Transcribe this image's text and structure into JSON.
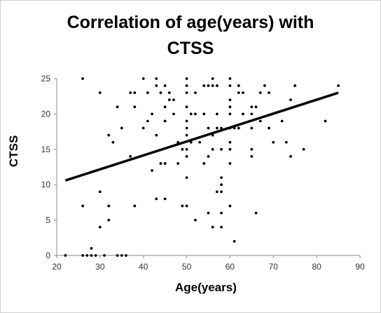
{
  "chart_data": {
    "type": "scatter",
    "title_line1": "Correlation of age(years) with",
    "title_line2": "CTSS",
    "xlabel": "Age(years)",
    "ylabel": "CTSS",
    "xlim": [
      20,
      90
    ],
    "ylim": [
      0,
      25
    ],
    "xticks": [
      "20",
      "30",
      "40",
      "50",
      "60",
      "70",
      "80",
      "90"
    ],
    "yticks": [
      "0",
      "5",
      "10",
      "15",
      "20",
      "25"
    ],
    "trendline": {
      "x": [
        22,
        85
      ],
      "y": [
        10.6,
        23
      ]
    },
    "points": [
      [
        22,
        0
      ],
      [
        26,
        25
      ],
      [
        26,
        7
      ],
      [
        26,
        0
      ],
      [
        27,
        0
      ],
      [
        28,
        1
      ],
      [
        28,
        0
      ],
      [
        29,
        0
      ],
      [
        30,
        23
      ],
      [
        30,
        9
      ],
      [
        30,
        4
      ],
      [
        31,
        0
      ],
      [
        32,
        17
      ],
      [
        32,
        7
      ],
      [
        32,
        5
      ],
      [
        33,
        16
      ],
      [
        34,
        21
      ],
      [
        34,
        0
      ],
      [
        35,
        18
      ],
      [
        35,
        0
      ],
      [
        36,
        0
      ],
      [
        37,
        23
      ],
      [
        37,
        14
      ],
      [
        38,
        23
      ],
      [
        38,
        7
      ],
      [
        38,
        21
      ],
      [
        40,
        25
      ],
      [
        40,
        18
      ],
      [
        41,
        23
      ],
      [
        41,
        19
      ],
      [
        42,
        20
      ],
      [
        42,
        12
      ],
      [
        43,
        25
      ],
      [
        43,
        24
      ],
      [
        43,
        17
      ],
      [
        43,
        8
      ],
      [
        44,
        23
      ],
      [
        44,
        13
      ],
      [
        45,
        24
      ],
      [
        45,
        21
      ],
      [
        45,
        19
      ],
      [
        45,
        13
      ],
      [
        45,
        8
      ],
      [
        46,
        23
      ],
      [
        46,
        22
      ],
      [
        47,
        22
      ],
      [
        47,
        20
      ],
      [
        48,
        16
      ],
      [
        48,
        13
      ],
      [
        49,
        15
      ],
      [
        49,
        7
      ],
      [
        50,
        25
      ],
      [
        50,
        24
      ],
      [
        50,
        23
      ],
      [
        50,
        21
      ],
      [
        50,
        19
      ],
      [
        50,
        18
      ],
      [
        50,
        17
      ],
      [
        50,
        15
      ],
      [
        50,
        14
      ],
      [
        50,
        11
      ],
      [
        50,
        7
      ],
      [
        51,
        20
      ],
      [
        51,
        16
      ],
      [
        52,
        23
      ],
      [
        52,
        20
      ],
      [
        52,
        5
      ],
      [
        53,
        16
      ],
      [
        54,
        24
      ],
      [
        54,
        13
      ],
      [
        54,
        20
      ],
      [
        55,
        24
      ],
      [
        55,
        18
      ],
      [
        55,
        14
      ],
      [
        55,
        6
      ],
      [
        56,
        25
      ],
      [
        56,
        24
      ],
      [
        56,
        17
      ],
      [
        56,
        15
      ],
      [
        56,
        4
      ],
      [
        57,
        24
      ],
      [
        57,
        20
      ],
      [
        57,
        18
      ],
      [
        57,
        9
      ],
      [
        58,
        11
      ],
      [
        58,
        10
      ],
      [
        58,
        9
      ],
      [
        58,
        6
      ],
      [
        58,
        4
      ],
      [
        58,
        15
      ],
      [
        58,
        18
      ],
      [
        60,
        25
      ],
      [
        60,
        24
      ],
      [
        60,
        22
      ],
      [
        60,
        21
      ],
      [
        60,
        20
      ],
      [
        60,
        18
      ],
      [
        60,
        16
      ],
      [
        60,
        15
      ],
      [
        60,
        13
      ],
      [
        60,
        7
      ],
      [
        61,
        18
      ],
      [
        61,
        2
      ],
      [
        62,
        24
      ],
      [
        62,
        23
      ],
      [
        62,
        18
      ],
      [
        63,
        23
      ],
      [
        63,
        20
      ],
      [
        65,
        20
      ],
      [
        65,
        21
      ],
      [
        65,
        18
      ],
      [
        65,
        15
      ],
      [
        65,
        14
      ],
      [
        66,
        21
      ],
      [
        66,
        6
      ],
      [
        67,
        23
      ],
      [
        67,
        19
      ],
      [
        68,
        24
      ],
      [
        69,
        23
      ],
      [
        69,
        18
      ],
      [
        70,
        16
      ],
      [
        72,
        19
      ],
      [
        73,
        16
      ],
      [
        74,
        14
      ],
      [
        74,
        22
      ],
      [
        75,
        24
      ],
      [
        77,
        15
      ],
      [
        82,
        19
      ],
      [
        85,
        24
      ]
    ]
  }
}
